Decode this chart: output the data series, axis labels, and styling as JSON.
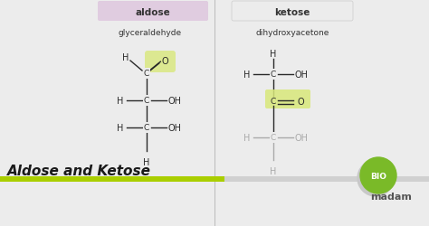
{
  "bg_color": "#ececec",
  "aldose_label": "aldose",
  "ketose_label": "ketose",
  "aldose_box_color": "#e0cce0",
  "ketose_box_color": "#ececec",
  "aldose_sub": "glyceraldehyde",
  "ketose_sub": "dihydroxyacetone",
  "title_text": "Aldose and Ketose",
  "title_color": "#1a1a1a",
  "green_bar_color": "#aace00",
  "gray_bar_color": "#b0b0b0",
  "line_color": "#2a2a2a",
  "highlight_green": "#d8e87a",
  "bio_green": "#7aba28",
  "bio_gray": "#c0c0c0",
  "madam_color": "#555555",
  "gray_atom": "#aaaaaa",
  "divider_color": "#bbbbbb"
}
